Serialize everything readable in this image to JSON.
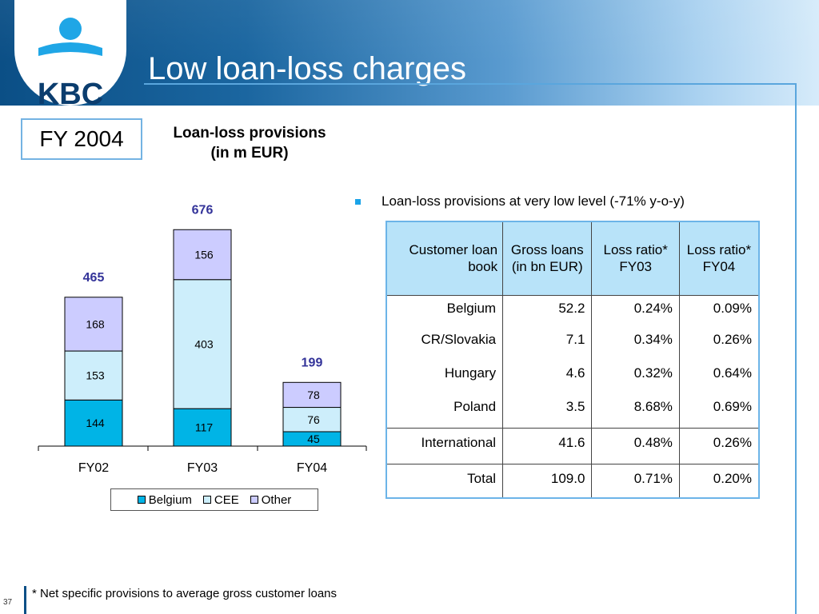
{
  "header": {
    "logo_text": "KBC",
    "title": "Low loan-loss charges"
  },
  "badge": "FY 2004",
  "chart_heading": {
    "line1": "Loan-loss provisions",
    "line2": "(in m EUR)"
  },
  "chart_data": {
    "type": "bar",
    "stacked": true,
    "categories": [
      "FY02",
      "FY03",
      "FY04"
    ],
    "series": [
      {
        "name": "Belgium",
        "values": [
          144,
          117,
          45
        ],
        "color": "#00b4e6"
      },
      {
        "name": "CEE",
        "values": [
          153,
          403,
          76
        ],
        "color": "#cdeefb"
      },
      {
        "name": "Other",
        "values": [
          168,
          156,
          78
        ],
        "color": "#ccccff"
      }
    ],
    "totals": [
      465,
      676,
      199
    ],
    "total_label_color": "#333399",
    "ylim": [
      0,
      760
    ],
    "legend_position": "bottom",
    "grid": false
  },
  "bullet": "Loan-loss provisions at very low level (-71% y-o-y)",
  "table": {
    "headers": [
      "Customer loan book",
      "Gross loans (in bn EUR)",
      "Loss ratio* FY03",
      "Loss ratio* FY04"
    ],
    "rows": [
      {
        "name": "Belgium",
        "gross": "52.2",
        "fy03": "0.24%",
        "fy04": "0.09%"
      },
      {
        "name": "CR/Slovakia",
        "gross": "7.1",
        "fy03": "0.34%",
        "fy04": "0.26%"
      },
      {
        "name": "Hungary",
        "gross": "4.6",
        "fy03": "0.32%",
        "fy04": "0.64%"
      },
      {
        "name": "Poland",
        "gross": "3.5",
        "fy03": "8.68%",
        "fy04": "0.69%"
      },
      {
        "name": "International",
        "gross": "41.6",
        "fy03": "0.48%",
        "fy04": "0.26%"
      },
      {
        "name": "Total",
        "gross": "109.0",
        "fy03": "0.71%",
        "fy04": "0.20%"
      }
    ]
  },
  "footnote": "* Net specific provisions to average gross customer loans",
  "page_number": "37"
}
